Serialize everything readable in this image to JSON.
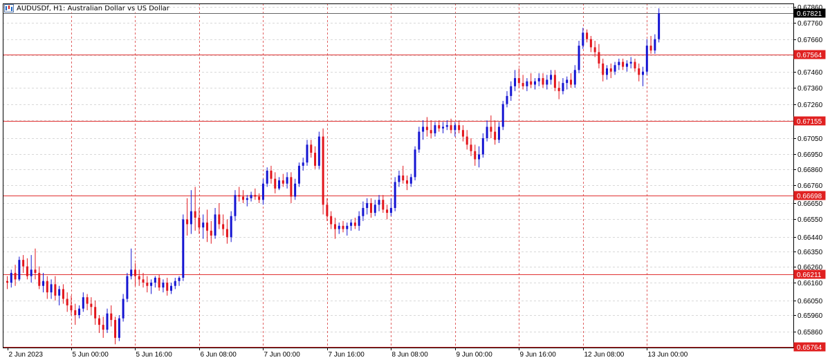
{
  "window": {
    "title": "AUDUSDf, H1:  Australian Dollar vs US Dollar",
    "symbol": "AUDUSDf",
    "timeframe": "H1",
    "description": "Australian Dollar vs US Dollar"
  },
  "colors": {
    "bull": "#1414d2",
    "bear": "#e2151c",
    "level_line": "#e03030",
    "vgrid": "#e06060",
    "hgrid": "#d8d8d8",
    "axis": "#000000",
    "current_tag_bg": "#000000",
    "current_tag_text": "#ffffff",
    "level_tag_bg": "#e02020",
    "level_tag_text": "#ffffff"
  },
  "icons": {
    "title": "chart-window-icon"
  },
  "chart_data": {
    "type": "candlestick",
    "ylim": [
      0.6576,
      0.6788
    ],
    "y_ticks": [
      "0.67860",
      "0.67760",
      "0.67660",
      "0.67560",
      "0.67460",
      "0.67360",
      "0.67260",
      "0.67160",
      "0.67050",
      "0.66950",
      "0.66860",
      "0.66760",
      "0.66650",
      "0.66550",
      "0.66440",
      "0.66350",
      "0.66260",
      "0.66160",
      "0.66050",
      "0.65960",
      "0.65860"
    ],
    "x_ticks": [
      {
        "label": "2 Jun 2023",
        "bar": 0
      },
      {
        "label": "5 Jun 00:00",
        "bar": 16
      },
      {
        "label": "5 Jun 16:00",
        "bar": 32
      },
      {
        "label": "6 Jun 08:00",
        "bar": 48
      },
      {
        "label": "7 Jun 00:00",
        "bar": 64
      },
      {
        "label": "7 Jun 16:00",
        "bar": 80
      },
      {
        "label": "8 Jun 08:00",
        "bar": 96
      },
      {
        "label": "9 Jun 00:00",
        "bar": 112
      },
      {
        "label": "9 Jun 16:00",
        "bar": 128
      },
      {
        "label": "12 Jun 08:00",
        "bar": 144
      },
      {
        "label": "13 Jun 00:00",
        "bar": 160
      }
    ],
    "current_price": "0.67821",
    "levels": [
      "0.67564",
      "0.67155",
      "0.66698",
      "0.66211",
      "0.65764"
    ],
    "candles": [
      [
        0.6617,
        0.662,
        0.6612,
        0.6616
      ],
      [
        0.6616,
        0.6624,
        0.6613,
        0.6622
      ],
      [
        0.6622,
        0.6627,
        0.6614,
        0.6618
      ],
      [
        0.6618,
        0.6632,
        0.6617,
        0.663
      ],
      [
        0.663,
        0.6633,
        0.6622,
        0.6626
      ],
      [
        0.6626,
        0.6631,
        0.6618,
        0.662
      ],
      [
        0.662,
        0.6633,
        0.6616,
        0.6624
      ],
      [
        0.6624,
        0.6637,
        0.6618,
        0.6622
      ],
      [
        0.6622,
        0.6626,
        0.6612,
        0.6614
      ],
      [
        0.6614,
        0.6622,
        0.661,
        0.6617
      ],
      [
        0.6617,
        0.662,
        0.6606,
        0.661
      ],
      [
        0.661,
        0.6618,
        0.6606,
        0.6615
      ],
      [
        0.6615,
        0.662,
        0.6605,
        0.6608
      ],
      [
        0.6608,
        0.6614,
        0.6602,
        0.6612
      ],
      [
        0.6612,
        0.6615,
        0.6603,
        0.6606
      ],
      [
        0.6606,
        0.661,
        0.6598,
        0.6602
      ],
      [
        0.6602,
        0.6608,
        0.6596,
        0.6599
      ],
      [
        0.6599,
        0.6603,
        0.659,
        0.6596
      ],
      [
        0.6596,
        0.6602,
        0.6594,
        0.66
      ],
      [
        0.66,
        0.661,
        0.6598,
        0.6607
      ],
      [
        0.6607,
        0.6609,
        0.6599,
        0.6603
      ],
      [
        0.6603,
        0.6607,
        0.6596,
        0.6601
      ],
      [
        0.6601,
        0.6605,
        0.659,
        0.6594
      ],
      [
        0.6594,
        0.6596,
        0.6585,
        0.659
      ],
      [
        0.659,
        0.6595,
        0.6582,
        0.6587
      ],
      [
        0.6587,
        0.66,
        0.6585,
        0.6597
      ],
      [
        0.6597,
        0.6602,
        0.6589,
        0.6593
      ],
      [
        0.6593,
        0.6595,
        0.6578,
        0.6582
      ],
      [
        0.6582,
        0.6596,
        0.658,
        0.6594
      ],
      [
        0.6594,
        0.6609,
        0.6592,
        0.6606
      ],
      [
        0.6606,
        0.6622,
        0.6604,
        0.662
      ],
      [
        0.662,
        0.6637,
        0.6618,
        0.6624
      ],
      [
        0.6624,
        0.6628,
        0.6614,
        0.662
      ],
      [
        0.662,
        0.6624,
        0.6614,
        0.6618
      ],
      [
        0.6618,
        0.6622,
        0.6613,
        0.6616
      ],
      [
        0.6616,
        0.662,
        0.661,
        0.6614
      ],
      [
        0.6614,
        0.6618,
        0.6609,
        0.6616
      ],
      [
        0.6616,
        0.662,
        0.6613,
        0.6619
      ],
      [
        0.6619,
        0.6621,
        0.6611,
        0.6613
      ],
      [
        0.6613,
        0.6618,
        0.661,
        0.6616
      ],
      [
        0.6616,
        0.6619,
        0.6608,
        0.6611
      ],
      [
        0.6611,
        0.6616,
        0.6609,
        0.6614
      ],
      [
        0.6614,
        0.6619,
        0.6612,
        0.6617
      ],
      [
        0.6617,
        0.662,
        0.6614,
        0.6619
      ],
      [
        0.6619,
        0.6658,
        0.6617,
        0.6655
      ],
      [
        0.6655,
        0.6668,
        0.6645,
        0.6652
      ],
      [
        0.6652,
        0.6673,
        0.6646,
        0.666
      ],
      [
        0.666,
        0.6675,
        0.6648,
        0.6656
      ],
      [
        0.6656,
        0.6662,
        0.6646,
        0.665
      ],
      [
        0.665,
        0.6658,
        0.6643,
        0.6653
      ],
      [
        0.6653,
        0.6661,
        0.6641,
        0.6648
      ],
      [
        0.6648,
        0.6654,
        0.664,
        0.6645
      ],
      [
        0.6645,
        0.6662,
        0.6643,
        0.6658
      ],
      [
        0.6658,
        0.6665,
        0.6649,
        0.6652
      ],
      [
        0.6652,
        0.6658,
        0.6645,
        0.6649
      ],
      [
        0.6649,
        0.6655,
        0.664,
        0.6644
      ],
      [
        0.6644,
        0.666,
        0.6641,
        0.6657
      ],
      [
        0.6657,
        0.6673,
        0.6654,
        0.667
      ],
      [
        0.667,
        0.6675,
        0.6666,
        0.6669
      ],
      [
        0.6669,
        0.6673,
        0.6665,
        0.6667
      ],
      [
        0.6667,
        0.667,
        0.6663,
        0.6668
      ],
      [
        0.6668,
        0.6672,
        0.6666,
        0.667
      ],
      [
        0.667,
        0.6674,
        0.6667,
        0.6669
      ],
      [
        0.6669,
        0.6671,
        0.6665,
        0.6667
      ],
      [
        0.6667,
        0.668,
        0.6664,
        0.6677
      ],
      [
        0.6677,
        0.6687,
        0.6675,
        0.6685
      ],
      [
        0.6685,
        0.6688,
        0.6677,
        0.668
      ],
      [
        0.668,
        0.6684,
        0.6671,
        0.6674
      ],
      [
        0.6674,
        0.6681,
        0.6673,
        0.6679
      ],
      [
        0.6679,
        0.6683,
        0.6675,
        0.6677
      ],
      [
        0.6677,
        0.6684,
        0.6674,
        0.6681
      ],
      [
        0.6681,
        0.6684,
        0.6665,
        0.6669
      ],
      [
        0.6669,
        0.668,
        0.6667,
        0.6677
      ],
      [
        0.6677,
        0.669,
        0.6675,
        0.6688
      ],
      [
        0.6688,
        0.6693,
        0.6685,
        0.669
      ],
      [
        0.669,
        0.6704,
        0.6688,
        0.6701
      ],
      [
        0.6701,
        0.6704,
        0.6693,
        0.6696
      ],
      [
        0.6696,
        0.67,
        0.6686,
        0.6688
      ],
      [
        0.6688,
        0.6709,
        0.6686,
        0.6706
      ],
      [
        0.6706,
        0.6711,
        0.6658,
        0.6664
      ],
      [
        0.6664,
        0.6668,
        0.6654,
        0.6657
      ],
      [
        0.6657,
        0.666,
        0.6649,
        0.6652
      ],
      [
        0.6652,
        0.6656,
        0.6643,
        0.6649
      ],
      [
        0.6649,
        0.6653,
        0.6646,
        0.6651
      ],
      [
        0.6651,
        0.6654,
        0.6647,
        0.6649
      ],
      [
        0.6649,
        0.6653,
        0.6645,
        0.6651
      ],
      [
        0.6651,
        0.6655,
        0.6648,
        0.6653
      ],
      [
        0.6653,
        0.6656,
        0.6649,
        0.6651
      ],
      [
        0.6651,
        0.666,
        0.6648,
        0.6657
      ],
      [
        0.6657,
        0.6666,
        0.6654,
        0.6662
      ],
      [
        0.6662,
        0.6668,
        0.6658,
        0.6665
      ],
      [
        0.6665,
        0.6668,
        0.6656,
        0.6659
      ],
      [
        0.6659,
        0.6667,
        0.6657,
        0.6664
      ],
      [
        0.6664,
        0.667,
        0.666,
        0.6667
      ],
      [
        0.6667,
        0.667,
        0.6659,
        0.6661
      ],
      [
        0.6661,
        0.6664,
        0.6655,
        0.6659
      ],
      [
        0.6659,
        0.6668,
        0.6657,
        0.6662
      ],
      [
        0.6662,
        0.6681,
        0.666,
        0.6678
      ],
      [
        0.6678,
        0.6685,
        0.6675,
        0.6682
      ],
      [
        0.6682,
        0.6688,
        0.6677,
        0.6679
      ],
      [
        0.6679,
        0.6682,
        0.6673,
        0.6677
      ],
      [
        0.6677,
        0.6683,
        0.6675,
        0.6681
      ],
      [
        0.6681,
        0.67,
        0.6679,
        0.6698
      ],
      [
        0.6698,
        0.6712,
        0.6696,
        0.6709
      ],
      [
        0.6709,
        0.6716,
        0.6704,
        0.6712
      ],
      [
        0.6712,
        0.6718,
        0.6706,
        0.671
      ],
      [
        0.671,
        0.6716,
        0.6705,
        0.6708
      ],
      [
        0.6708,
        0.6715,
        0.6706,
        0.6713
      ],
      [
        0.6713,
        0.6716,
        0.6709,
        0.6711
      ],
      [
        0.6711,
        0.6715,
        0.6708,
        0.6712
      ],
      [
        0.6712,
        0.6716,
        0.671,
        0.6713
      ],
      [
        0.6713,
        0.6717,
        0.6708,
        0.671
      ],
      [
        0.671,
        0.6715,
        0.6706,
        0.6713
      ],
      [
        0.6713,
        0.6716,
        0.6708,
        0.671
      ],
      [
        0.671,
        0.6713,
        0.6703,
        0.6706
      ],
      [
        0.6706,
        0.671,
        0.6698,
        0.6701
      ],
      [
        0.6701,
        0.6705,
        0.6694,
        0.6697
      ],
      [
        0.6697,
        0.6701,
        0.6688,
        0.6692
      ],
      [
        0.6692,
        0.67,
        0.6687,
        0.6695
      ],
      [
        0.6695,
        0.6708,
        0.6693,
        0.6705
      ],
      [
        0.6705,
        0.6716,
        0.6703,
        0.6712
      ],
      [
        0.6712,
        0.6719,
        0.6705,
        0.6709
      ],
      [
        0.6709,
        0.6716,
        0.6701,
        0.6704
      ],
      [
        0.6704,
        0.6715,
        0.6702,
        0.6712
      ],
      [
        0.6712,
        0.6728,
        0.671,
        0.6726
      ],
      [
        0.6726,
        0.6734,
        0.6724,
        0.6731
      ],
      [
        0.6731,
        0.674,
        0.6728,
        0.6737
      ],
      [
        0.6737,
        0.6747,
        0.6734,
        0.6742
      ],
      [
        0.6742,
        0.6748,
        0.6736,
        0.6739
      ],
      [
        0.6739,
        0.6744,
        0.6735,
        0.6737
      ],
      [
        0.6737,
        0.6742,
        0.6734,
        0.674
      ],
      [
        0.674,
        0.6745,
        0.6736,
        0.6738
      ],
      [
        0.6738,
        0.6742,
        0.6735,
        0.674
      ],
      [
        0.674,
        0.6745,
        0.6737,
        0.6742
      ],
      [
        0.6742,
        0.6745,
        0.6736,
        0.6738
      ],
      [
        0.6738,
        0.6744,
        0.6735,
        0.6741
      ],
      [
        0.6741,
        0.6747,
        0.6738,
        0.6744
      ],
      [
        0.6744,
        0.6747,
        0.6734,
        0.6736
      ],
      [
        0.6736,
        0.674,
        0.6729,
        0.6734
      ],
      [
        0.6734,
        0.6742,
        0.6732,
        0.6739
      ],
      [
        0.6739,
        0.6743,
        0.6735,
        0.6741
      ],
      [
        0.6741,
        0.6745,
        0.6736,
        0.6738
      ],
      [
        0.6738,
        0.675,
        0.6736,
        0.6747
      ],
      [
        0.6747,
        0.6765,
        0.6745,
        0.6762
      ],
      [
        0.6762,
        0.6773,
        0.676,
        0.677
      ],
      [
        0.677,
        0.6772,
        0.6764,
        0.6766
      ],
      [
        0.6766,
        0.6768,
        0.6758,
        0.6761
      ],
      [
        0.6761,
        0.6765,
        0.6755,
        0.6758
      ],
      [
        0.6758,
        0.6763,
        0.6748,
        0.6751
      ],
      [
        0.6751,
        0.6754,
        0.674,
        0.6744
      ],
      [
        0.6744,
        0.675,
        0.6741,
        0.6748
      ],
      [
        0.6748,
        0.6751,
        0.6742,
        0.6746
      ],
      [
        0.6746,
        0.6752,
        0.6744,
        0.675
      ],
      [
        0.675,
        0.6754,
        0.6747,
        0.6752
      ],
      [
        0.6752,
        0.6754,
        0.6747,
        0.6749
      ],
      [
        0.6749,
        0.6753,
        0.6746,
        0.6751
      ],
      [
        0.6751,
        0.6755,
        0.6748,
        0.6752
      ],
      [
        0.6752,
        0.6754,
        0.6746,
        0.6748
      ],
      [
        0.6748,
        0.6751,
        0.674,
        0.6744
      ],
      [
        0.6744,
        0.6749,
        0.6737,
        0.6746
      ],
      [
        0.6746,
        0.6766,
        0.6744,
        0.6762
      ],
      [
        0.6762,
        0.6768,
        0.6757,
        0.6759
      ],
      [
        0.6759,
        0.6769,
        0.6757,
        0.6766
      ],
      [
        0.6766,
        0.6785,
        0.6764,
        0.6782
      ]
    ]
  }
}
